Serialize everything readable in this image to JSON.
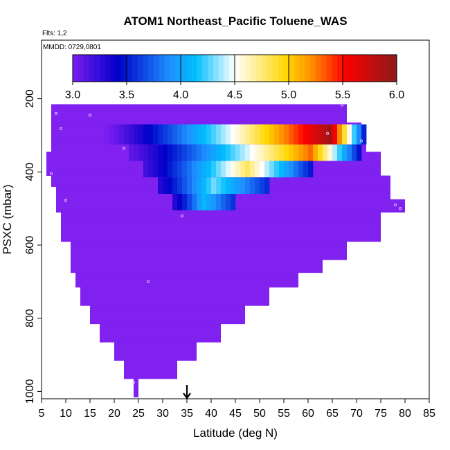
{
  "chart_data": {
    "type": "heatmap",
    "title": "ATOM1 Northeast_Pacific Toluene_WAS",
    "flights_label": "Flts: 1,2",
    "dates_label": "MMDD: 0729,0801",
    "xlabel": "Latitude (deg N)",
    "ylabel": "PSXC (mbar)",
    "xlim": [
      5,
      85
    ],
    "ylim": [
      1020,
      40
    ],
    "y_reversed": true,
    "x_ticks": [
      "5",
      "10",
      "15",
      "20",
      "25",
      "30",
      "35",
      "40",
      "45",
      "50",
      "55",
      "60",
      "65",
      "70",
      "75",
      "80",
      "85"
    ],
    "y_ticks": [
      "200",
      "400",
      "600",
      "800",
      "1000"
    ],
    "colorbar": {
      "range": [
        3.0,
        6.0
      ],
      "ticks": [
        "3.0",
        "3.5",
        "4.0",
        "4.5",
        "5.0",
        "5.5",
        "6.0"
      ],
      "colors": [
        "#7b1cf0",
        "#0000c8",
        "#1e90ff",
        "#00bfff",
        "#ffffff",
        "#ffd700",
        "#ff8c00",
        "#ff0000",
        "#8b1a1a"
      ]
    },
    "fill_color": "#8021f0",
    "fill_value": 3.0,
    "marker": {
      "lat": 35,
      "label": "arrow"
    },
    "region_rows": [
      {
        "p0": 215,
        "p1": 265,
        "lat0": 7,
        "lat1": 68
      },
      {
        "p0": 265,
        "p1": 305,
        "lat0": 7,
        "lat1": 71
      },
      {
        "p0": 305,
        "p1": 345,
        "lat0": 7,
        "lat1": 72
      },
      {
        "p0": 345,
        "p1": 370,
        "lat0": 6,
        "lat1": 75
      },
      {
        "p0": 370,
        "p1": 410,
        "lat0": 6,
        "lat1": 75
      },
      {
        "p0": 410,
        "p1": 440,
        "lat0": 7,
        "lat1": 77
      },
      {
        "p0": 440,
        "p1": 475,
        "lat0": 8,
        "lat1": 77
      },
      {
        "p0": 475,
        "p1": 510,
        "lat0": 8,
        "lat1": 80
      },
      {
        "p0": 510,
        "p1": 540,
        "lat0": 9,
        "lat1": 75
      },
      {
        "p0": 540,
        "p1": 590,
        "lat0": 9,
        "lat1": 75
      },
      {
        "p0": 590,
        "p1": 640,
        "lat0": 11,
        "lat1": 68
      },
      {
        "p0": 640,
        "p1": 675,
        "lat0": 11,
        "lat1": 63
      },
      {
        "p0": 675,
        "p1": 715,
        "lat0": 12,
        "lat1": 58
      },
      {
        "p0": 715,
        "p1": 765,
        "lat0": 13,
        "lat1": 52
      },
      {
        "p0": 765,
        "p1": 815,
        "lat0": 15,
        "lat1": 47
      },
      {
        "p0": 815,
        "p1": 865,
        "lat0": 17,
        "lat1": 42
      },
      {
        "p0": 865,
        "p1": 915,
        "lat0": 20,
        "lat1": 37
      },
      {
        "p0": 915,
        "p1": 965,
        "lat0": 22,
        "lat1": 33
      },
      {
        "p0": 965,
        "p1": 1015,
        "lat0": 24,
        "lat1": 25
      }
    ],
    "bands": [
      {
        "p0": 270,
        "p1": 325,
        "lat0": 18,
        "lat1": 68,
        "vmin": 3.0,
        "vpeak": 5.9,
        "peak_lat": 64,
        "tail_to": 72
      },
      {
        "p0": 325,
        "p1": 370,
        "lat0": 23,
        "lat1": 69,
        "vmin": 3.1,
        "vpeak": 5.3,
        "peak_lat": 60,
        "tail_to": 71
      },
      {
        "p0": 370,
        "p1": 415,
        "lat0": 26,
        "lat1": 60,
        "vmin": 3.2,
        "vpeak": 4.8,
        "peak_lat": 47,
        "tail_to": 61
      },
      {
        "p0": 415,
        "p1": 460,
        "lat0": 29,
        "lat1": 52,
        "vmin": 3.3,
        "vpeak": 4.3,
        "peak_lat": 40,
        "tail_to": 52
      },
      {
        "p0": 460,
        "p1": 505,
        "lat0": 32,
        "lat1": 45,
        "vmin": 3.3,
        "vpeak": 4.1,
        "peak_lat": 38,
        "tail_to": 45
      }
    ],
    "sample_points": [
      {
        "lat": 8,
        "p": 240
      },
      {
        "lat": 15,
        "p": 245
      },
      {
        "lat": 67,
        "p": 217
      },
      {
        "lat": 9,
        "p": 282
      },
      {
        "lat": 64,
        "p": 295
      },
      {
        "lat": 71,
        "p": 315
      },
      {
        "lat": 7,
        "p": 405
      },
      {
        "lat": 22,
        "p": 335
      },
      {
        "lat": 10,
        "p": 478
      },
      {
        "lat": 34,
        "p": 520
      },
      {
        "lat": 78,
        "p": 490
      },
      {
        "lat": 79,
        "p": 500
      },
      {
        "lat": 27,
        "p": 700
      },
      {
        "lat": 24,
        "p": 975
      }
    ]
  }
}
